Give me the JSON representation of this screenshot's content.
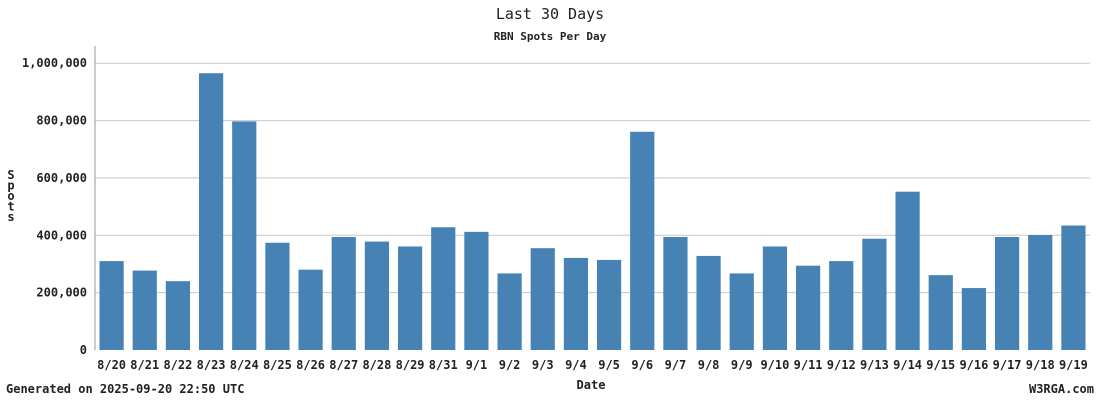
{
  "chart_data": {
    "type": "bar",
    "title": "Last 30 Days",
    "subtitle": "RBN Spots Per Day",
    "xlabel": "Date",
    "ylabel": "Spots",
    "ylim": [
      0,
      1060000
    ],
    "yticks": [
      0,
      200000,
      400000,
      600000,
      800000,
      1000000
    ],
    "ytick_labels": [
      "0",
      "200,000",
      "400,000",
      "600,000",
      "800,000",
      "1,000,000"
    ],
    "grid": true,
    "bar_color": "#4682b4",
    "categories": [
      "8/20",
      "8/21",
      "8/22",
      "8/23",
      "8/24",
      "8/25",
      "8/26",
      "8/27",
      "8/28",
      "8/29",
      "8/31",
      "9/1",
      "9/2",
      "9/3",
      "9/4",
      "9/5",
      "9/6",
      "9/7",
      "9/8",
      "9/9",
      "9/10",
      "9/11",
      "9/12",
      "9/13",
      "9/14",
      "9/15",
      "9/16",
      "9/17",
      "9/18",
      "9/19"
    ],
    "values": [
      310000,
      277000,
      240000,
      965000,
      797000,
      374000,
      280000,
      394000,
      378000,
      361000,
      428000,
      412000,
      267000,
      355000,
      321000,
      314000,
      761000,
      394000,
      328000,
      267000,
      361000,
      294000,
      310000,
      388000,
      552000,
      261000,
      216000,
      394000,
      401000,
      434000
    ]
  },
  "footer": {
    "generated": "Generated on 2025-09-20 22:50 UTC",
    "site": "W3RGA.com"
  }
}
